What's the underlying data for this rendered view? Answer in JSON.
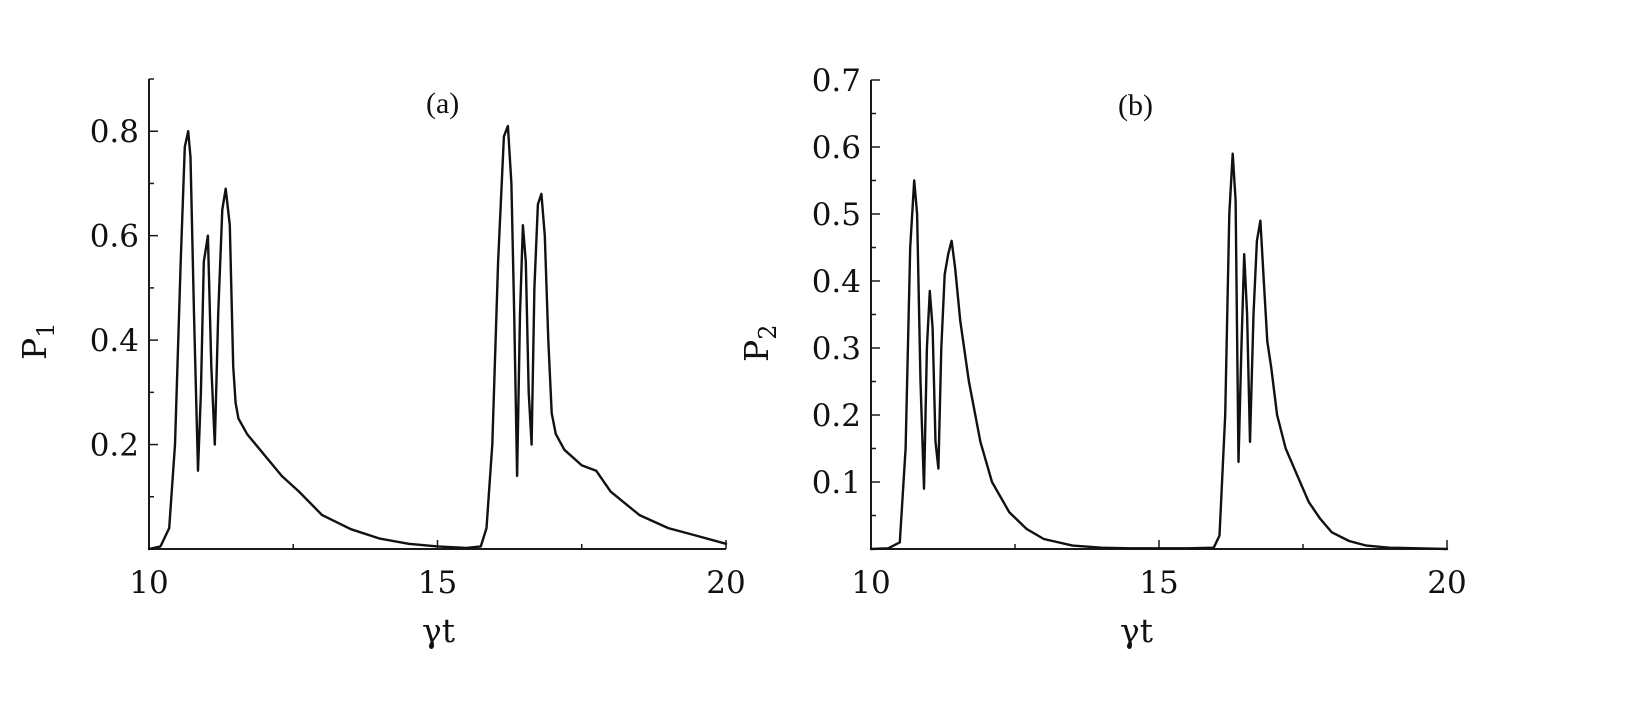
{
  "chart_data": [
    {
      "type": "line",
      "panel_label": "(a)",
      "xlabel": "γt",
      "ylabel": "P",
      "ylabel_sub": "1",
      "xlim": [
        10,
        20
      ],
      "ylim": [
        0,
        0.9
      ],
      "xticks": [
        10,
        15,
        20
      ],
      "xtick_labels": [
        "10",
        "15",
        "20"
      ],
      "yticks": [
        0.2,
        0.4,
        0.6,
        0.8
      ],
      "ytick_labels": [
        "0.2",
        "0.4",
        "0.6",
        "0.8"
      ],
      "grid": false,
      "series": [
        {
          "x": [
            10.0,
            10.2,
            10.35,
            10.45,
            10.55,
            10.62,
            10.68,
            10.72,
            10.78,
            10.85,
            10.9,
            10.95,
            11.02,
            11.08,
            11.14,
            11.2,
            11.27,
            11.33,
            11.4,
            11.46,
            11.5,
            11.55,
            11.7,
            12.0,
            12.3,
            12.6,
            13.0,
            13.5,
            14.0,
            14.5,
            15.0,
            15.5,
            15.75,
            15.85,
            15.95,
            16.05,
            16.15,
            16.22,
            16.28,
            16.33,
            16.38,
            16.43,
            16.48,
            16.53,
            16.58,
            16.63,
            16.68,
            16.74,
            16.8,
            16.86,
            16.92,
            16.98,
            17.05,
            17.2,
            17.5,
            17.75,
            18.0,
            18.5,
            19.0,
            19.5,
            20.0
          ],
          "y": [
            0.0,
            0.005,
            0.04,
            0.2,
            0.55,
            0.77,
            0.8,
            0.75,
            0.45,
            0.15,
            0.3,
            0.55,
            0.6,
            0.35,
            0.2,
            0.45,
            0.65,
            0.69,
            0.62,
            0.35,
            0.28,
            0.25,
            0.22,
            0.18,
            0.14,
            0.11,
            0.065,
            0.038,
            0.02,
            0.01,
            0.005,
            0.002,
            0.005,
            0.04,
            0.2,
            0.55,
            0.79,
            0.81,
            0.7,
            0.45,
            0.14,
            0.45,
            0.62,
            0.55,
            0.3,
            0.2,
            0.5,
            0.66,
            0.68,
            0.6,
            0.4,
            0.26,
            0.22,
            0.19,
            0.16,
            0.15,
            0.11,
            0.065,
            0.04,
            0.025,
            0.01
          ]
        }
      ]
    },
    {
      "type": "line",
      "panel_label": "(b)",
      "xlabel": "γt",
      "ylabel": "P",
      "ylabel_sub": "2",
      "xlim": [
        10,
        20
      ],
      "ylim": [
        0,
        0.7
      ],
      "xticks": [
        10,
        15,
        20
      ],
      "xtick_labels": [
        "10",
        "15",
        "20"
      ],
      "yticks": [
        0.1,
        0.2,
        0.3,
        0.4,
        0.5,
        0.6,
        0.7
      ],
      "ytick_labels": [
        "0.1",
        "0.2",
        "0.3",
        "0.4",
        "0.5",
        "0.6",
        "0.7"
      ],
      "grid": false,
      "series": [
        {
          "x": [
            10.0,
            10.3,
            10.5,
            10.6,
            10.68,
            10.75,
            10.8,
            10.86,
            10.92,
            10.97,
            11.02,
            11.07,
            11.12,
            11.17,
            11.22,
            11.28,
            11.34,
            11.4,
            11.46,
            11.55,
            11.7,
            11.9,
            12.1,
            12.4,
            12.7,
            13.0,
            13.5,
            14.0,
            14.5,
            15.0,
            15.5,
            15.95,
            16.05,
            16.15,
            16.22,
            16.28,
            16.33,
            16.38,
            16.43,
            16.48,
            16.53,
            16.58,
            16.64,
            16.7,
            16.76,
            16.82,
            16.88,
            16.95,
            17.05,
            17.2,
            17.4,
            17.6,
            17.8,
            18.0,
            18.3,
            18.6,
            19.0,
            19.5,
            20.0
          ],
          "y": [
            0.0,
            0.001,
            0.01,
            0.15,
            0.45,
            0.55,
            0.5,
            0.25,
            0.09,
            0.3,
            0.385,
            0.33,
            0.16,
            0.12,
            0.3,
            0.41,
            0.44,
            0.46,
            0.42,
            0.34,
            0.25,
            0.16,
            0.1,
            0.055,
            0.03,
            0.015,
            0.005,
            0.002,
            0.001,
            0.001,
            0.001,
            0.002,
            0.02,
            0.2,
            0.5,
            0.59,
            0.52,
            0.13,
            0.3,
            0.44,
            0.35,
            0.16,
            0.35,
            0.46,
            0.49,
            0.4,
            0.31,
            0.27,
            0.2,
            0.15,
            0.11,
            0.07,
            0.045,
            0.025,
            0.012,
            0.005,
            0.002,
            0.001,
            0.0
          ]
        }
      ]
    }
  ]
}
